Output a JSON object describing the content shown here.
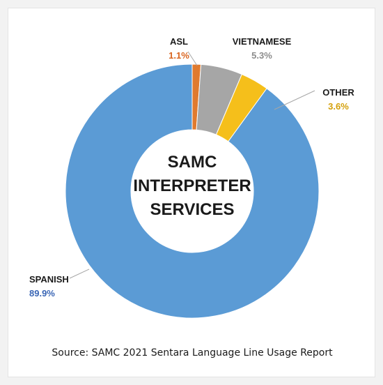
{
  "chart_data": {
    "type": "pie",
    "donut": true,
    "title_lines": [
      "SAMC",
      "INTERPRETER",
      "SERVICES"
    ],
    "slices": [
      {
        "name": "ASL",
        "value": 1.1,
        "label": "1.1%",
        "color": "#e07a2e"
      },
      {
        "name": "VIETNAMESE",
        "value": 5.3,
        "label": "5.3%",
        "color": "#a6a6a6"
      },
      {
        "name": "OTHER",
        "value": 3.6,
        "label": "3.6%",
        "color": "#f5bf1b"
      },
      {
        "name": "SPANISH",
        "value": 89.9,
        "label": "89.9%",
        "color": "#5b9bd5"
      }
    ],
    "label_colors": {
      "ASL": "#d9641e",
      "VIETNAMESE": "#8c8c8c",
      "OTHER": "#d4a00a",
      "SPANISH": "#3a66b5"
    }
  },
  "source": "Source: SAMC 2021 Sentara Language Line Usage Report"
}
